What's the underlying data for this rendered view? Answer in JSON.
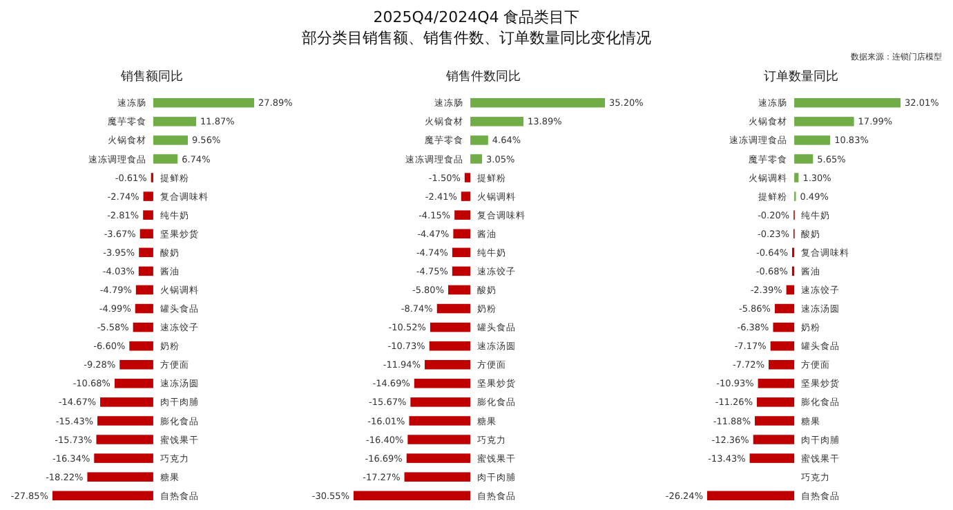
{
  "chart_data": [
    {
      "type": "bar",
      "orientation": "horizontal",
      "title": "销售额同比",
      "annotations": [
        "2025Q4/2024Q4 食品类目下",
        "部分类目销售额、销售件数、订单数量同比变化情况",
        "数据来源：连锁门店模型"
      ],
      "categories": [
        "速冻肠",
        "魔芋零食",
        "火锅食材",
        "速冻调理食品",
        "提鲜粉",
        "复合调味料",
        "纯牛奶",
        "坚果炒货",
        "酸奶",
        "酱油",
        "火锅调料",
        "罐头食品",
        "速冻饺子",
        "奶粉",
        "方便面",
        "速冻汤圆",
        "肉干肉脯",
        "膨化食品",
        "蜜饯果干",
        "巧克力",
        "糖果",
        "自热食品"
      ],
      "values": [
        27.89,
        11.87,
        9.56,
        6.74,
        -0.61,
        -2.74,
        -2.81,
        -3.67,
        -3.95,
        -4.03,
        -4.79,
        -4.99,
        -5.58,
        -6.6,
        -9.28,
        -10.68,
        -14.67,
        -15.43,
        -15.73,
        -16.34,
        -18.22,
        -27.85
      ],
      "value_labels": [
        "27.89%",
        "11.87%",
        "9.56%",
        "6.74%",
        "-0.61%",
        "-2.74%",
        "-2.81%",
        "-3.67%",
        "-3.95%",
        "-4.03%",
        "-4.79%",
        "-4.99%",
        "-5.58%",
        "-6.60%",
        "-9.28%",
        "-10.68%",
        "-14.67%",
        "-15.43%",
        "-15.73%",
        "-16.34%",
        "-18.22%",
        "-27.85%"
      ],
      "colors": [
        "#70ad47",
        "#70ad47",
        "#70ad47",
        "#70ad47",
        "#c00000",
        "#c00000",
        "#c00000",
        "#c00000",
        "#c00000",
        "#c00000",
        "#c00000",
        "#c00000",
        "#c00000",
        "#c00000",
        "#c00000",
        "#c00000",
        "#c00000",
        "#c00000",
        "#c00000",
        "#c00000",
        "#c00000",
        "#c00000"
      ]
    },
    {
      "type": "bar",
      "orientation": "horizontal",
      "title": "销售件数同比",
      "categories": [
        "速冻肠",
        "火锅食材",
        "魔芋零食",
        "速冻调理食品",
        "提鲜粉",
        "火锅调料",
        "复合调味料",
        "酱油",
        "纯牛奶",
        "速冻饺子",
        "酸奶",
        "奶粉",
        "罐头食品",
        "速冻汤圆",
        "方便面",
        "坚果炒货",
        "膨化食品",
        "糖果",
        "巧克力",
        "蜜饯果干",
        "肉干肉脯",
        "自热食品"
      ],
      "values": [
        35.2,
        13.89,
        4.64,
        3.05,
        -1.5,
        -2.41,
        -4.15,
        -4.47,
        -4.74,
        -4.75,
        -5.8,
        -8.74,
        -10.52,
        -10.73,
        -11.94,
        -14.69,
        -15.67,
        -16.01,
        -16.4,
        -16.69,
        -17.27,
        -30.55
      ],
      "value_labels": [
        "35.20%",
        "13.89%",
        "4.64%",
        "3.05%",
        "-1.50%",
        "-2.41%",
        "-4.15%",
        "-4.47%",
        "-4.74%",
        "-4.75%",
        "-5.80%",
        "-8.74%",
        "-10.52%",
        "-10.73%",
        "-11.94%",
        "-14.69%",
        "-15.67%",
        "-16.01%",
        "-16.40%",
        "-16.69%",
        "-17.27%",
        "-30.55%"
      ],
      "colors": [
        "#70ad47",
        "#70ad47",
        "#70ad47",
        "#70ad47",
        "#c00000",
        "#c00000",
        "#c00000",
        "#c00000",
        "#c00000",
        "#c00000",
        "#c00000",
        "#c00000",
        "#c00000",
        "#c00000",
        "#c00000",
        "#c00000",
        "#c00000",
        "#c00000",
        "#c00000",
        "#c00000",
        "#c00000",
        "#c00000"
      ]
    },
    {
      "type": "bar",
      "orientation": "horizontal",
      "title": "订单数量同比",
      "categories": [
        "速冻肠",
        "火锅食材",
        "速冻调理食品",
        "魔芋零食",
        "火锅调料",
        "提鲜粉",
        "纯牛奶",
        "酸奶",
        "复合调味料",
        "酱油",
        "速冻饺子",
        "速冻汤圆",
        "奶粉",
        "罐头食品",
        "方便面",
        "坚果炒货",
        "膨化食品",
        "糖果",
        "肉干肉脯",
        "蜜饯果干",
        "巧克力",
        "自热食品"
      ],
      "values": [
        32.01,
        17.99,
        10.83,
        5.65,
        1.3,
        0.49,
        -0.2,
        -0.23,
        -0.64,
        -0.68,
        -2.39,
        -5.86,
        -6.38,
        -7.17,
        -7.72,
        -10.93,
        -11.26,
        -11.88,
        -12.36,
        -13.43,
        null,
        -26.24
      ],
      "value_labels": [
        "32.01%",
        "17.99%",
        "10.83%",
        "5.65%",
        "1.30%",
        "0.49%",
        "-0.20%",
        "-0.23%",
        "-0.64%",
        "-0.68%",
        "-2.39%",
        "-5.86%",
        "-6.38%",
        "-7.17%",
        "-7.72%",
        "-10.93%",
        "-11.26%",
        "-11.88%",
        "-12.36%",
        "-13.43%",
        null,
        "-26.24%"
      ],
      "colors": [
        "#70ad47",
        "#70ad47",
        "#70ad47",
        "#70ad47",
        "#70ad47",
        "#70ad47",
        "#c00000",
        "#c00000",
        "#c00000",
        "#c00000",
        "#c00000",
        "#c00000",
        "#c00000",
        "#c00000",
        "#c00000",
        "#c00000",
        "#c00000",
        "#c00000",
        "#c00000",
        "#c00000",
        "#c00000",
        "#c00000"
      ]
    }
  ]
}
